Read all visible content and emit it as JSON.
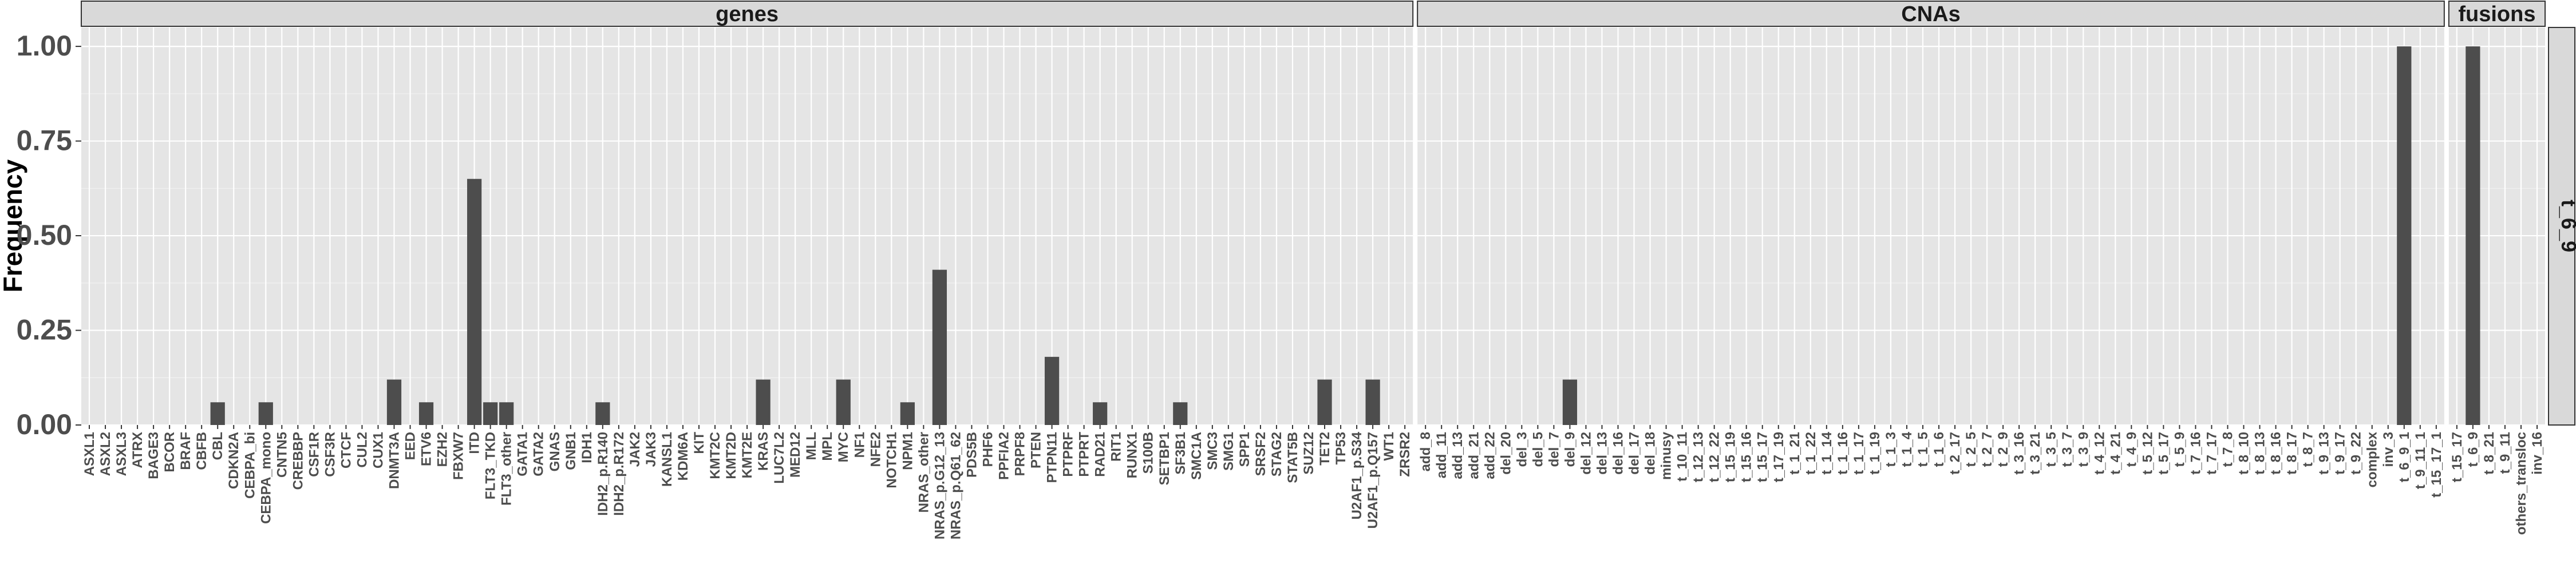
{
  "chart_data": {
    "type": "bar",
    "ylabel": "Frequency",
    "xlabel": "",
    "ylim": [
      0,
      1.05
    ],
    "yticks": [
      "0.00",
      "0.25",
      "0.50",
      "0.75",
      "1.00"
    ],
    "row_strip": "t_6_9",
    "colors": {
      "bar": "#4d4d4d",
      "panel": "#e5e5e5",
      "grid": "#ffffff",
      "strip": "#d9d9d9"
    },
    "panels": [
      {
        "name": "genes",
        "categories": [
          "ASXL1",
          "ASXL2",
          "ASXL3",
          "ATRX",
          "BAGE3",
          "BCOR",
          "BRAF",
          "CBFB",
          "CBL",
          "CDKN2A",
          "CEBPA_bi",
          "CEBPA_mono",
          "CNTN5",
          "CREBBP",
          "CSF1R",
          "CSF3R",
          "CTCF",
          "CUL2",
          "CUX1",
          "DNMT3A",
          "EED",
          "ETV6",
          "EZH2",
          "FBXW7",
          "ITD",
          "FLT3_TKD",
          "FLT3_other",
          "GATA1",
          "GATA2",
          "GNAS",
          "GNB1",
          "IDH1",
          "IDH2_p.R140",
          "IDH2_p.R172",
          "JAK2",
          "JAK3",
          "KANSL1",
          "KDM6A",
          "KIT",
          "KMT2C",
          "KMT2D",
          "KMT2E",
          "KRAS",
          "LUC7L2",
          "MED12",
          "MLL",
          "MPL",
          "MYC",
          "NF1",
          "NFE2",
          "NOTCH1",
          "NPM1",
          "NRAS_other",
          "NRAS_p.G12_13",
          "NRAS_p.Q61_62",
          "PDS5B",
          "PHF6",
          "PPFIA2",
          "PRPF8",
          "PTEN",
          "PTPN11",
          "PTPRF",
          "PTPRT",
          "RAD21",
          "RIT1",
          "RUNX1",
          "S100B",
          "SETBP1",
          "SF3B1",
          "SMC1A",
          "SMC3",
          "SMG1",
          "SPP1",
          "SRSF2",
          "STAG2",
          "STAT5B",
          "SUZ12",
          "TET2",
          "TP53",
          "U2AF1_p.S34",
          "U2AF1_p.Q157",
          "WT1",
          "ZRSR2"
        ],
        "values": [
          0,
          0,
          0,
          0,
          0,
          0,
          0,
          0,
          0.06,
          0,
          0,
          0.06,
          0,
          0,
          0,
          0,
          0,
          0,
          0,
          0.12,
          0,
          0.06,
          0,
          0,
          0.65,
          0.06,
          0.06,
          0,
          0,
          0,
          0,
          0,
          0.06,
          0,
          0,
          0,
          0,
          0,
          0,
          0,
          0,
          0,
          0.12,
          0,
          0,
          0,
          0,
          0.12,
          0,
          0,
          0,
          0.06,
          0,
          0.41,
          0,
          0,
          0,
          0,
          0,
          0,
          0.18,
          0,
          0,
          0.06,
          0,
          0,
          0,
          0,
          0.06,
          0,
          0,
          0,
          0,
          0,
          0,
          0,
          0,
          0.12,
          0,
          0,
          0.12,
          0,
          0
        ]
      },
      {
        "name": "CNAs",
        "categories": [
          "add_8",
          "add_11",
          "add_13",
          "add_21",
          "add_22",
          "del_20",
          "del_3",
          "del_5",
          "del_7",
          "del_9",
          "del_12",
          "del_13",
          "del_16",
          "del_17",
          "del_18",
          "minusy",
          "t_10_11",
          "t_12_13",
          "t_12_22",
          "t_15_19",
          "t_15_16",
          "t_15_17",
          "t_17_19",
          "t_1_21",
          "t_1_22",
          "t_1_14",
          "t_1_16",
          "t_1_17",
          "t_1_19",
          "t_1_3",
          "t_1_4",
          "t_1_5",
          "t_1_6",
          "t_2_17",
          "t_2_5",
          "t_2_7",
          "t_2_9",
          "t_3_16",
          "t_3_21",
          "t_3_5",
          "t_3_7",
          "t_3_9",
          "t_4_12",
          "t_4_21",
          "t_4_9",
          "t_5_12",
          "t_5_17",
          "t_5_9",
          "t_7_16",
          "t_7_17",
          "t_7_8",
          "t_8_10",
          "t_8_13",
          "t_8_16",
          "t_8_17",
          "t_8_7",
          "t_9_13",
          "t_9_17",
          "t_9_22",
          "complex",
          "inv_3",
          "t_6_9_1",
          "t_9_11_1",
          "t_15_17_1"
        ],
        "values": [
          0,
          0,
          0,
          0,
          0,
          0,
          0,
          0,
          0,
          0.12,
          0,
          0,
          0,
          0,
          0,
          0,
          0,
          0,
          0,
          0,
          0,
          0,
          0,
          0,
          0,
          0,
          0,
          0,
          0,
          0,
          0,
          0,
          0,
          0,
          0,
          0,
          0,
          0,
          0,
          0,
          0,
          0,
          0,
          0,
          0,
          0,
          0,
          0,
          0,
          0,
          0,
          0,
          0,
          0,
          0,
          0,
          0,
          0,
          0,
          0,
          0,
          1.0,
          0,
          0
        ]
      },
      {
        "name": "fusions",
        "categories": [
          "t_15_17",
          "t_6_9",
          "t_8_21",
          "t_9_11",
          "others_transloc",
          "inv_16"
        ],
        "values": [
          0,
          1.0,
          0,
          0,
          0,
          0
        ]
      }
    ]
  }
}
